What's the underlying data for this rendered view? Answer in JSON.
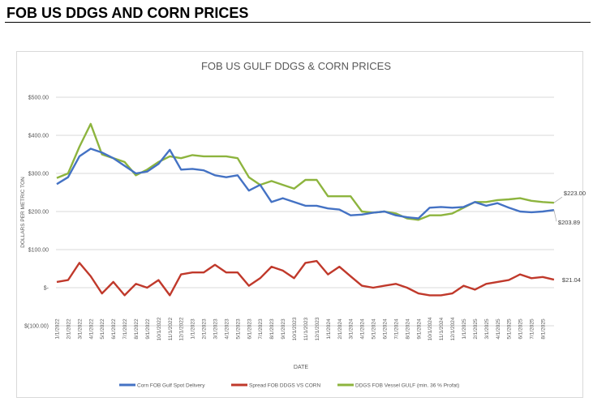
{
  "page_title": "FOB US DDGS AND CORN PRICES",
  "chart_data": {
    "type": "line",
    "title": "FOB US GULF DDGS & CORN PRICES",
    "xlabel": "DATE",
    "ylabel": "DOLLARS PER METRIC TON",
    "ylim": [
      -100,
      500
    ],
    "yticks": [
      500,
      400,
      300,
      200,
      100,
      0,
      -100
    ],
    "ytick_labels": [
      "$500.00",
      "$400.00",
      "$300.00",
      "$200.00",
      "$100.00",
      "$-",
      "$(100.00)"
    ],
    "grid": true,
    "legend": "bottom",
    "xtick_labels": [
      "1/1/2022",
      "2/1/2022",
      "3/1/2022",
      "4/1/2022",
      "5/1/2022",
      "6/1/2022",
      "7/1/2022",
      "8/1/2022",
      "9/1/2022",
      "10/1/2022",
      "11/1/2022",
      "12/1/2022",
      "1/1/2023",
      "2/1/2023",
      "3/1/2023",
      "4/1/2023",
      "5/1/2023",
      "6/1/2023",
      "7/1/2023",
      "8/1/2023",
      "9/1/2023",
      "10/1/2023",
      "11/1/2023",
      "12/1/2023",
      "1/1/2024",
      "2/1/2024",
      "3/1/2024",
      "4/1/2024",
      "5/1/2024",
      "6/1/2024",
      "7/1/2024",
      "8/1/2024",
      "9/1/2024",
      "10/1/2024",
      "11/1/2024",
      "12/1/2024",
      "1/1/2025",
      "2/1/2025",
      "3/1/2025",
      "4/1/2025",
      "5/1/2025",
      "6/1/2025",
      "7/1/2025",
      "8/1/2025"
    ],
    "x": [
      "2022-01",
      "2022-02",
      "2022-03",
      "2022-04",
      "2022-05",
      "2022-06",
      "2022-07",
      "2022-08",
      "2022-09",
      "2022-10",
      "2022-11",
      "2022-12",
      "2023-01",
      "2023-02",
      "2023-03",
      "2023-04",
      "2023-05",
      "2023-06",
      "2023-07",
      "2023-08",
      "2023-09",
      "2023-10",
      "2023-11",
      "2023-12",
      "2024-01",
      "2024-02",
      "2024-03",
      "2024-04",
      "2024-05",
      "2024-06",
      "2024-07",
      "2024-08",
      "2024-09",
      "2024-10",
      "2024-11",
      "2024-12",
      "2025-01",
      "2025-02",
      "2025-03",
      "2025-04",
      "2025-05",
      "2025-06",
      "2025-07",
      "2025-08",
      "2025-09"
    ],
    "series": [
      {
        "name": "Corn FOB Gulf Spot Delivery",
        "color": "#4472c4",
        "values": [
          272,
          290,
          345,
          365,
          355,
          340,
          320,
          300,
          305,
          325,
          362,
          310,
          312,
          308,
          295,
          290,
          295,
          255,
          270,
          225,
          235,
          225,
          215,
          215,
          208,
          205,
          190,
          192,
          197,
          200,
          190,
          185,
          182,
          210,
          212,
          210,
          212,
          225,
          215,
          222,
          210,
          200,
          198,
          200,
          203.89
        ],
        "end_label": "$203.89"
      },
      {
        "name": "Spread FOB DDGS VS CORN",
        "color": "#c0392b",
        "values": [
          15,
          20,
          65,
          30,
          -15,
          15,
          -20,
          10,
          0,
          20,
          -20,
          35,
          40,
          40,
          60,
          40,
          40,
          5,
          25,
          55,
          45,
          25,
          65,
          70,
          35,
          55,
          30,
          5,
          0,
          5,
          10,
          0,
          -15,
          -20,
          -20,
          -15,
          5,
          -5,
          10,
          15,
          20,
          35,
          25,
          28,
          21.04
        ],
        "end_label": "$21.04"
      },
      {
        "name": "DDGS FOB Vessel GULF  (min. 36 % Profat)",
        "color": "#8db43e",
        "values": [
          288,
          300,
          370,
          430,
          350,
          340,
          330,
          295,
          310,
          330,
          345,
          340,
          348,
          345,
          345,
          345,
          340,
          290,
          270,
          280,
          270,
          260,
          283,
          283,
          240,
          240,
          240,
          200,
          197,
          200,
          195,
          182,
          178,
          190,
          190,
          195,
          210,
          225,
          225,
          230,
          232,
          235,
          228,
          225,
          223
        ],
        "end_label": "$223.00"
      }
    ]
  }
}
